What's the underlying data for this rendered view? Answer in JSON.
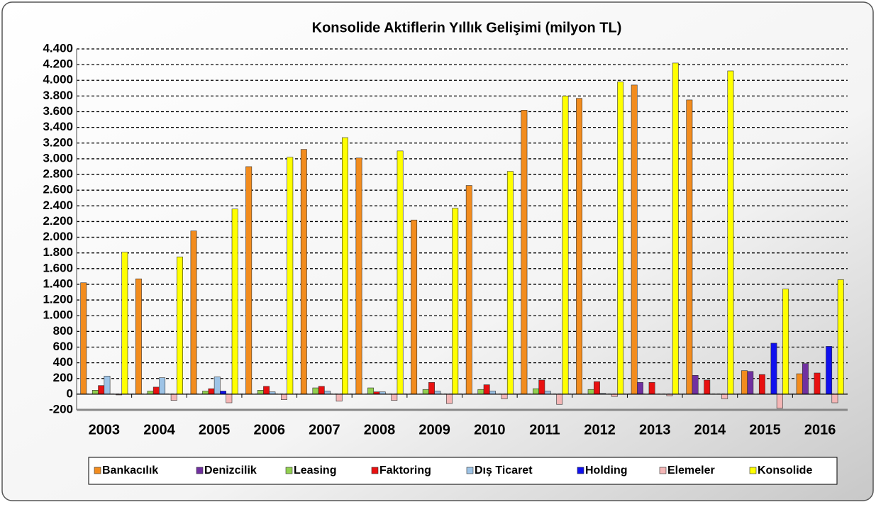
{
  "chart_data": {
    "type": "bar",
    "title": "Konsolide Aktiflerin Yıllık Gelişimi (milyon TL)",
    "categories": [
      "2003",
      "2004",
      "2005",
      "2006",
      "2007",
      "2008",
      "2009",
      "2010",
      "2011",
      "2012",
      "2013",
      "2014",
      "2015",
      "2016"
    ],
    "series": [
      {
        "name": "Bankacılık",
        "color": "#f28c1e",
        "values": [
          1420,
          1470,
          2080,
          2900,
          3120,
          3010,
          2220,
          2660,
          3620,
          3770,
          3940,
          3750,
          300,
          260
        ]
      },
      {
        "name": "Denizcilik",
        "color": "#7030a0",
        "values": [
          0,
          0,
          0,
          0,
          0,
          0,
          0,
          0,
          0,
          0,
          150,
          240,
          290,
          390
        ]
      },
      {
        "name": "Leasing",
        "color": "#92d050",
        "values": [
          50,
          40,
          40,
          50,
          80,
          80,
          60,
          60,
          70,
          60,
          0,
          0,
          0,
          0
        ]
      },
      {
        "name": "Faktoring",
        "color": "#e81010",
        "values": [
          110,
          90,
          70,
          100,
          100,
          30,
          150,
          120,
          180,
          160,
          150,
          180,
          250,
          270
        ]
      },
      {
        "name": "Dış Ticaret",
        "color": "#9dc3e6",
        "values": [
          230,
          210,
          220,
          30,
          40,
          30,
          40,
          40,
          40,
          10,
          0,
          0,
          0,
          0
        ]
      },
      {
        "name": "Holding",
        "color": "#1010ee",
        "values": [
          0,
          0,
          40,
          0,
          0,
          0,
          0,
          0,
          0,
          0,
          0,
          0,
          650,
          610
        ]
      },
      {
        "name": "Elemeler",
        "color": "#f4b6b6",
        "values": [
          -10,
          -80,
          -110,
          -70,
          -90,
          -80,
          -120,
          -60,
          -130,
          -30,
          -20,
          -60,
          -180,
          -110
        ]
      },
      {
        "name": "Konsolide",
        "color": "#ffff00",
        "values": [
          1810,
          1750,
          2360,
          3020,
          3270,
          3100,
          2370,
          2840,
          3800,
          3980,
          4220,
          4120,
          1340,
          1460
        ]
      }
    ],
    "ylim": [
      -200,
      4400
    ],
    "yticks": [
      -200,
      0,
      200,
      400,
      600,
      800,
      {
        "value": 1000,
        "label": "1.000"
      },
      {
        "value": 1200,
        "label": "1.200"
      },
      {
        "value": 1400,
        "label": "1.400"
      },
      {
        "value": 1600,
        "label": "1.600"
      },
      {
        "value": 1800,
        "label": "1.800"
      },
      {
        "value": 2000,
        "label": "2.000"
      },
      {
        "value": 2200,
        "label": "2.200"
      },
      {
        "value": 2400,
        "label": "2.400"
      },
      {
        "value": 2600,
        "label": "2.600"
      },
      {
        "value": 2800,
        "label": "2.800"
      },
      {
        "value": 3000,
        "label": "3.000"
      },
      {
        "value": 3200,
        "label": "3.200"
      },
      {
        "value": 3400,
        "label": "3.400"
      },
      {
        "value": 3600,
        "label": "3.600"
      },
      {
        "value": 3800,
        "label": "3.800"
      },
      {
        "value": 4000,
        "label": "4.000"
      },
      {
        "value": 4200,
        "label": "4.200"
      },
      {
        "value": 4400,
        "label": "4.400"
      }
    ],
    "grid": true,
    "legend": "bottom"
  }
}
